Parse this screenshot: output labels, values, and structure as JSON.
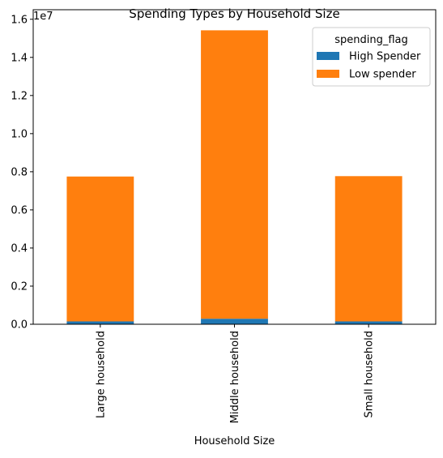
{
  "chart_data": {
    "type": "bar",
    "stacked": true,
    "title": "Spending Types by Household Size",
    "xlabel": "Household Size",
    "ylabel": "",
    "y_scale_label": "1e7",
    "categories": [
      "Large household",
      "Middle household",
      "Small household"
    ],
    "series": [
      {
        "name": "High Spender",
        "color": "#1f77b4",
        "values": [
          150000,
          290000,
          150000
        ]
      },
      {
        "name": "Low spender",
        "color": "#ff7f0e",
        "values": [
          7600000,
          15130000,
          7620000
        ]
      }
    ],
    "ylim": [
      0,
      16500000
    ],
    "yticks": [
      0.0,
      0.2,
      0.4,
      0.6,
      0.8,
      1.0,
      1.2,
      1.4,
      1.6
    ],
    "ytick_labels": [
      "0.0",
      "0.2",
      "0.4",
      "0.6",
      "0.8",
      "1.0",
      "1.2",
      "1.4",
      "1.6"
    ],
    "legend": {
      "title": "spending_flag",
      "placement": "top-right"
    },
    "grid": false
  }
}
